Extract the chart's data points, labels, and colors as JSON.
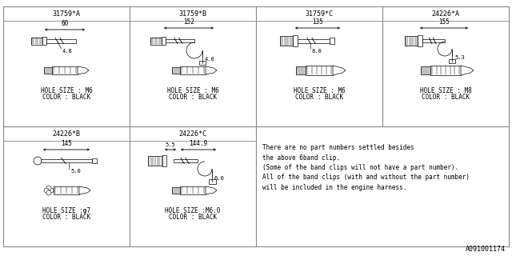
{
  "background_color": "#ffffff",
  "border_color": "#888888",
  "note_text": [
    "There are no part numbers settled besides",
    "the above 6band clip.",
    "(Some of the band clips will not have a part number).",
    "All of the band clips (with and without the part number)",
    "will be included in the engine harness."
  ],
  "footer": "A091001174",
  "grid_color": "#888888",
  "text_color": "#000000",
  "line_color": "#000000",
  "cells_top": [
    {
      "id": "31759*A",
      "col": 0,
      "dim1": "60",
      "dim2": "4.8",
      "hole": "HOLE SIZE : M6",
      "clr": "COLOR : BLACK",
      "style": "A"
    },
    {
      "id": "31759*B",
      "col": 1,
      "dim1": "152",
      "dim2": "4.0",
      "hole": "HOLE SIZE : M6",
      "clr": "COLOR : BLACK",
      "style": "B"
    },
    {
      "id": "31759*C",
      "col": 2,
      "dim1": "135",
      "dim2": "8.0",
      "hole": "HOLE SIZE : M6",
      "clr": "COLOR : BLACK",
      "style": "C"
    },
    {
      "id": "24226*A",
      "col": 3,
      "dim1": "155",
      "dim2": "5.3",
      "hole": "HOLE SIZE : M8",
      "clr": "COLOR : BLACK",
      "style": "D"
    }
  ],
  "cells_bot": [
    {
      "id": "24226*B",
      "col": 0,
      "dim1": "145",
      "dim2": "5.0",
      "hole": "HOLE SIZE :φ7",
      "clr": "COLOR : BLACK",
      "style": "E"
    },
    {
      "id": "24226*C",
      "col": 1,
      "dim1": "144.9",
      "dim2": "6.0",
      "hole": "HOLE SIZE :M6.0",
      "clr": "COLOR : BLACK",
      "style": "F",
      "dim2a": "5.5"
    }
  ]
}
